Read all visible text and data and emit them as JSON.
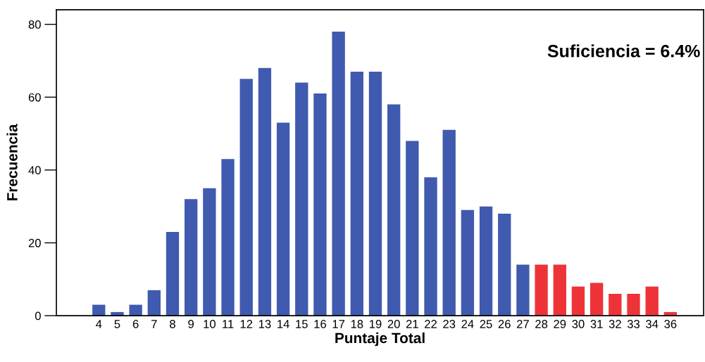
{
  "chart_data": {
    "type": "bar",
    "xlabel": "Puntaje Total",
    "ylabel": "Frecuencia",
    "categories": [
      "4",
      "5",
      "6",
      "7",
      "8",
      "9",
      "10",
      "11",
      "12",
      "13",
      "14",
      "15",
      "16",
      "17",
      "18",
      "19",
      "20",
      "21",
      "22",
      "23",
      "24",
      "25",
      "26",
      "27",
      "28",
      "29",
      "30",
      "31",
      "32",
      "33",
      "34",
      "36"
    ],
    "values": [
      3,
      1,
      3,
      7,
      23,
      32,
      35,
      43,
      65,
      68,
      53,
      64,
      61,
      78,
      67,
      67,
      58,
      48,
      38,
      51,
      29,
      30,
      28,
      14,
      14,
      14,
      8,
      9,
      6,
      6,
      8,
      1
    ],
    "colors": [
      "#3f5aae",
      "#3f5aae",
      "#3f5aae",
      "#3f5aae",
      "#3f5aae",
      "#3f5aae",
      "#3f5aae",
      "#3f5aae",
      "#3f5aae",
      "#3f5aae",
      "#3f5aae",
      "#3f5aae",
      "#3f5aae",
      "#3f5aae",
      "#3f5aae",
      "#3f5aae",
      "#3f5aae",
      "#3f5aae",
      "#3f5aae",
      "#3f5aae",
      "#3f5aae",
      "#3f5aae",
      "#3f5aae",
      "#3f5aae",
      "#ee3338",
      "#ee3338",
      "#ee3338",
      "#ee3338",
      "#ee3338",
      "#ee3338",
      "#ee3338",
      "#ee3338"
    ],
    "ylim": [
      0,
      84
    ],
    "yticks": [
      0,
      20,
      40,
      60,
      80
    ],
    "grid": false,
    "annotations": [
      "Suficiencia = 6.4%"
    ]
  }
}
